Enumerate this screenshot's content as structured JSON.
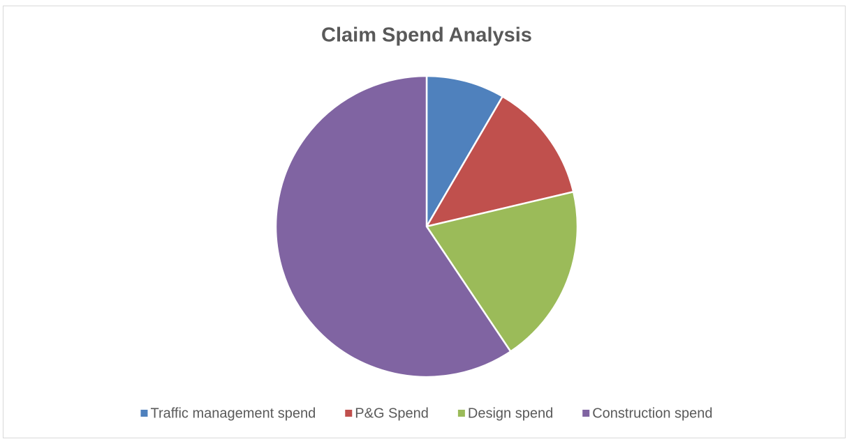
{
  "chart_data": {
    "type": "pie",
    "title": "Claim Spend Analysis",
    "categories": [
      "Traffic management spend",
      "P&G Spend",
      "Design spend",
      "Construction spend"
    ],
    "values": [
      8.4,
      12.9,
      19.3,
      59.4
    ],
    "colors": [
      "#4f81bd",
      "#c0504d",
      "#9bbb59",
      "#8064a2"
    ],
    "legend": "bottom"
  }
}
